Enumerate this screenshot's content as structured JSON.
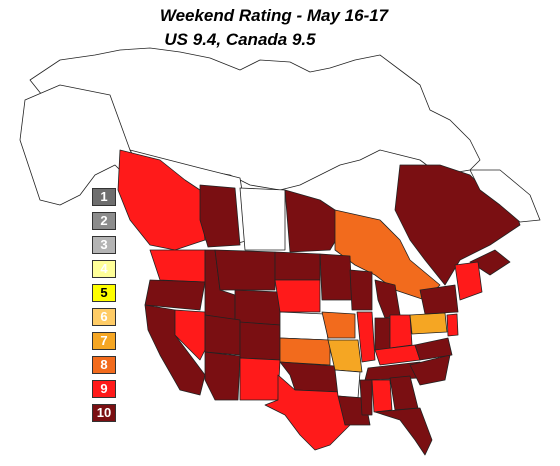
{
  "title": "Weekend Rating - May 16-17",
  "subtitle": "US 9.4, Canada 9.5",
  "legend": [
    {
      "label": "1",
      "color": "#6e6e6e",
      "text": "#ffffff"
    },
    {
      "label": "2",
      "color": "#8c8c8c",
      "text": "#ffffff"
    },
    {
      "label": "3",
      "color": "#b4b4b4",
      "text": "#ffffff"
    },
    {
      "label": "4",
      "color": "#ffff99",
      "text": "#ffffff"
    },
    {
      "label": "5",
      "color": "#ffff00",
      "text": "#000000"
    },
    {
      "label": "6",
      "color": "#ffcc66",
      "text": "#ffffff"
    },
    {
      "label": "7",
      "color": "#f5a623",
      "text": "#ffffff"
    },
    {
      "label": "8",
      "color": "#f26b1d",
      "text": "#ffffff"
    },
    {
      "label": "9",
      "color": "#ff1a1a",
      "text": "#ffffff"
    },
    {
      "label": "10",
      "color": "#7a0f12",
      "text": "#ffffff"
    }
  ],
  "colors": {
    "rating_10": "#7a0f12",
    "rating_9": "#ff1a1a",
    "rating_8": "#f26b1d",
    "rating_7": "#f5a623",
    "rating_6": "#ffcc66",
    "no_data": "#ffffff"
  }
}
